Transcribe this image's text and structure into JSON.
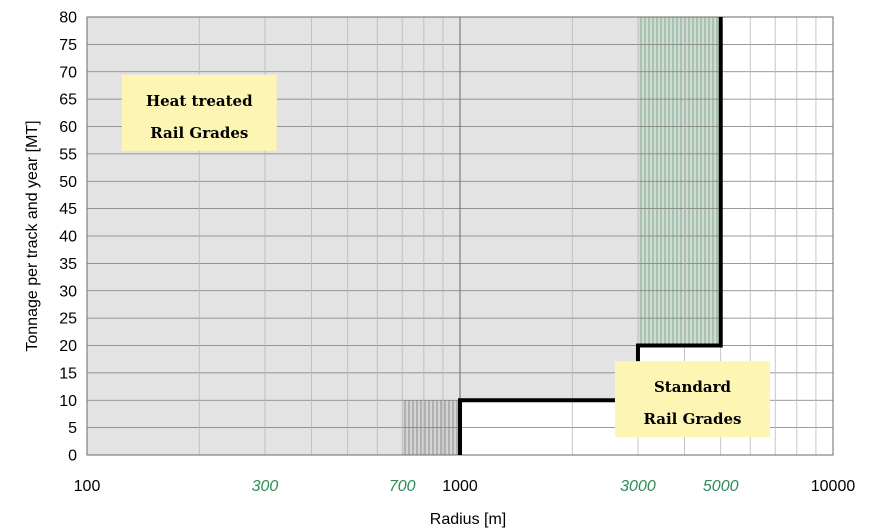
{
  "chart_data": {
    "type": "line",
    "xlabel": "Radius [m]",
    "ylabel": "Tonnage per track and year [MT]",
    "x_scale": "log",
    "xlim": [
      100,
      10000
    ],
    "ylim": [
      0,
      80
    ],
    "y_ticks": [
      0,
      5,
      10,
      15,
      20,
      25,
      30,
      35,
      40,
      45,
      50,
      55,
      60,
      65,
      70,
      75,
      80
    ],
    "x_ticks": [
      {
        "value": 100,
        "label": "100",
        "color": "#000000"
      },
      {
        "value": 300,
        "label": "300",
        "color": "#2e8b57"
      },
      {
        "value": 700,
        "label": "700",
        "color": "#2e8b57"
      },
      {
        "value": 1000,
        "label": "1000",
        "color": "#000000"
      },
      {
        "value": 3000,
        "label": "3000",
        "color": "#2e8b57"
      },
      {
        "value": 5000,
        "label": "5000",
        "color": "#2e8b57"
      },
      {
        "value": 10000,
        "label": "10000",
        "color": "#000000"
      }
    ],
    "grid": true,
    "series": [
      {
        "x": [
          1000,
          1000,
          3000,
          3000,
          5000,
          5000
        ],
        "y": [
          0,
          10,
          10,
          20,
          20,
          80
        ],
        "color": "#000000"
      }
    ],
    "regions": [
      {
        "x": [
          700,
          1000
        ],
        "y": [
          0,
          10
        ],
        "style": "hatched-grey"
      },
      {
        "x": [
          3000,
          5000
        ],
        "y": [
          20,
          80
        ],
        "style": "hatched-green"
      }
    ],
    "annotations": [
      {
        "lines": [
          "Heat treated",
          "Rail Grades"
        ],
        "x": 200,
        "y": 62.5
      },
      {
        "lines": [
          "Standard",
          "Rail Grades"
        ],
        "x": 4200,
        "y": 10.2
      }
    ],
    "colors": {
      "shade": "#e3e3e3",
      "note_bg": "#fdf5b3",
      "green": "#2e8b57",
      "hatch_green": "#a9c2b2",
      "hatch_grey": "#b0b0b0"
    }
  }
}
